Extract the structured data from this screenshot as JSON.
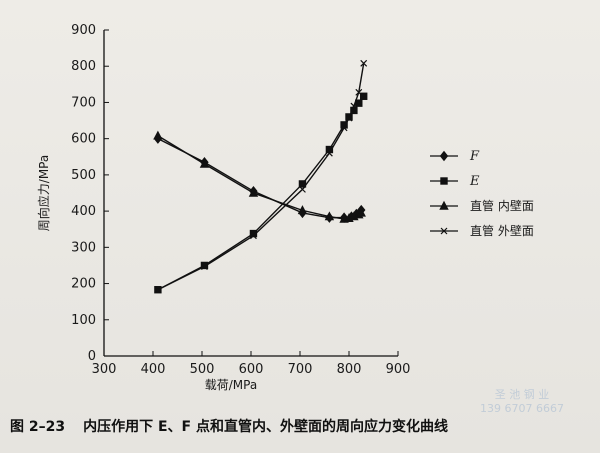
{
  "caption": {
    "number": "图 2–23",
    "text": "内压作用下 E、F 点和直管内、外壁面的周向应力变化曲线"
  },
  "watermark": {
    "line1": "圣 池 钢 业",
    "line2": "139 6707 6667"
  },
  "chart_data": {
    "type": "line",
    "title": "",
    "xlabel": "载荷/MPa",
    "ylabel": "周向应力/MPa",
    "xlim": [
      300,
      900
    ],
    "ylim": [
      0,
      900
    ],
    "xticks": [
      300,
      400,
      500,
      600,
      700,
      800,
      900
    ],
    "yticks": [
      0,
      100,
      200,
      300,
      400,
      500,
      600,
      700,
      800,
      900
    ],
    "grid": false,
    "legend_position": "right",
    "series": [
      {
        "name": "F",
        "marker": "diamond",
        "color": "#111111",
        "x": [
          410,
          505,
          605,
          705,
          760,
          790,
          805,
          815,
          825
        ],
        "y": [
          600,
          535,
          455,
          395,
          382,
          382,
          385,
          392,
          403
        ]
      },
      {
        "name": "E",
        "marker": "square",
        "color": "#111111",
        "x": [
          410,
          505,
          605,
          705,
          760,
          790,
          800,
          810,
          820,
          830
        ],
        "y": [
          183,
          250,
          338,
          475,
          570,
          638,
          660,
          678,
          698,
          717
        ]
      },
      {
        "name": "直管  内壁面",
        "marker": "triangle",
        "color": "#111111",
        "x": [
          410,
          505,
          605,
          705,
          760,
          790,
          800,
          810,
          820,
          825
        ],
        "y": [
          608,
          530,
          450,
          402,
          385,
          378,
          380,
          385,
          390,
          395
        ]
      },
      {
        "name": "直管  外壁面",
        "marker": "x",
        "color": "#111111",
        "x": [
          410,
          505,
          605,
          705,
          760,
          790,
          800,
          810,
          820,
          830
        ],
        "y": [
          183,
          247,
          332,
          460,
          560,
          630,
          657,
          690,
          728,
          808
        ]
      }
    ]
  }
}
